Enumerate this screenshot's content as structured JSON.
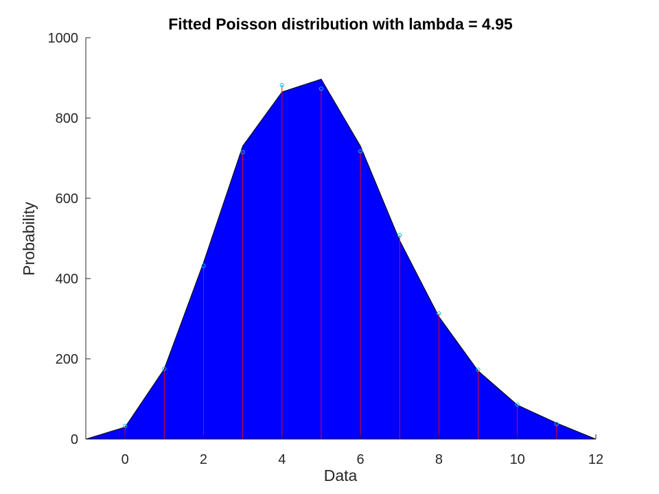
{
  "chart_data": {
    "type": "area",
    "title": "Fitted Poisson distribution with lambda = 4.95",
    "xlabel": "Data",
    "ylabel": "Probability",
    "xlim": [
      -1,
      12
    ],
    "ylim": [
      0,
      1000
    ],
    "xticks": [
      0,
      2,
      4,
      6,
      8,
      10,
      12
    ],
    "yticks": [
      0,
      200,
      400,
      600,
      800,
      1000
    ],
    "grid": false,
    "legend": "none",
    "fitted_curve": {
      "x": [
        -1,
        0,
        1,
        2,
        3,
        4,
        5,
        6,
        7,
        8,
        9,
        10,
        11,
        12
      ],
      "y": [
        0,
        30,
        175,
        440,
        730,
        865,
        897,
        730,
        495,
        305,
        170,
        85,
        40,
        0
      ],
      "fill_color": "#0000ff",
      "edge_color": "#000000"
    },
    "observed": {
      "x": [
        0,
        1,
        2,
        3,
        4,
        5,
        6,
        7,
        8,
        9,
        10,
        11
      ],
      "y": [
        33,
        175,
        432,
        715,
        882,
        873,
        717,
        508,
        313,
        173,
        86,
        38
      ],
      "stem_color": "#ff0000",
      "marker_color": "#00bfff"
    }
  }
}
